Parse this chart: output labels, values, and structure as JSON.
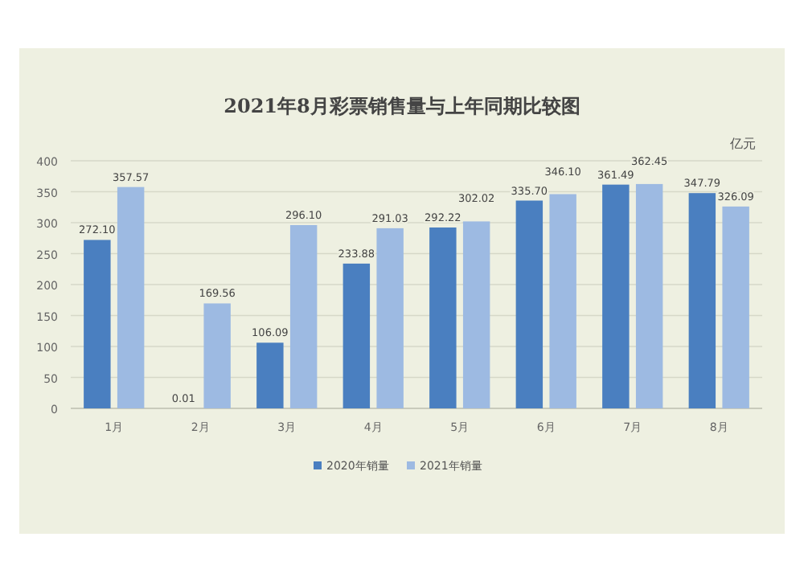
{
  "chart_data": {
    "type": "bar",
    "title": "2021年8月彩票销售量与上年同期比较图",
    "annotations": [
      "亿元"
    ],
    "categories": [
      "1月",
      "2月",
      "3月",
      "4月",
      "5月",
      "6月",
      "7月",
      "8月"
    ],
    "series": [
      {
        "name": "2020年销量",
        "color": "#4a7fc0",
        "values": [
          272.1,
          0.01,
          106.09,
          233.88,
          292.22,
          335.7,
          361.49,
          347.79
        ],
        "value_labels": [
          "272.10",
          "0.01",
          "106.09",
          "233.88",
          "292.22",
          "335.70",
          "361.49",
          "347.79"
        ]
      },
      {
        "name": "2021年销量",
        "color": "#9dbae2",
        "values": [
          357.57,
          169.56,
          296.1,
          291.03,
          302.02,
          346.1,
          362.45,
          326.09
        ],
        "value_labels": [
          "357.57",
          "169.56",
          "296.10",
          "291.03",
          "302.02",
          "346.10",
          "362.45",
          "326.09"
        ]
      }
    ],
    "ylim": [
      0,
      400
    ],
    "yticks": [
      0,
      50,
      100,
      150,
      200,
      250,
      300,
      350,
      400
    ],
    "grid": "y",
    "legend": "bottom"
  }
}
